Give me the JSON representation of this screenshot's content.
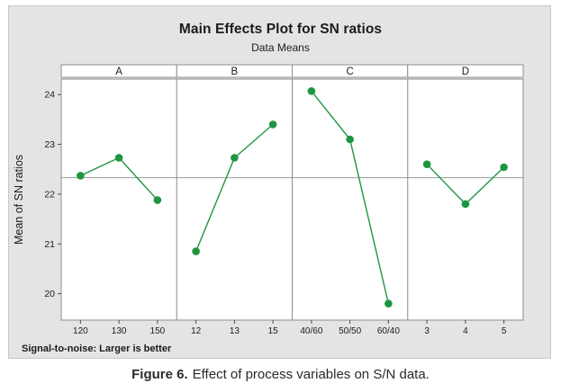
{
  "chart_data": {
    "type": "line",
    "title": "Main Effects Plot for SN ratios",
    "subtitle": "Data Means",
    "ylabel": "Mean of SN ratios",
    "yticks": [
      20,
      21,
      22,
      23,
      24
    ],
    "ylim": [
      19.47,
      24.31
    ],
    "reference_line": 22.33,
    "grid": "off",
    "legend": "none",
    "footnote": "Signal-to-noise: Larger is better",
    "panels": [
      {
        "label": "A",
        "categories": [
          "120",
          "130",
          "150"
        ],
        "values": [
          22.37,
          22.73,
          21.88
        ]
      },
      {
        "label": "B",
        "categories": [
          "12",
          "13",
          "15"
        ],
        "values": [
          20.85,
          22.73,
          23.4
        ]
      },
      {
        "label": "C",
        "categories": [
          "40/60",
          "50/50",
          "60/40"
        ],
        "values": [
          24.07,
          23.1,
          19.8
        ]
      },
      {
        "label": "D",
        "categories": [
          "3",
          "4",
          "5"
        ],
        "values": [
          22.6,
          21.8,
          22.54
        ]
      }
    ],
    "colors": {
      "series": "#1e9641",
      "reference_line": "#9a9a9a",
      "panel_border": "#8c8c8c",
      "tick": "#4d4d4d",
      "plot_bg": "#ffffff",
      "canvas_bg": "#e5e4e2"
    }
  },
  "figure_caption": {
    "prefix": "Figure 6.",
    "text": "Effect of process variables on S/N data."
  }
}
